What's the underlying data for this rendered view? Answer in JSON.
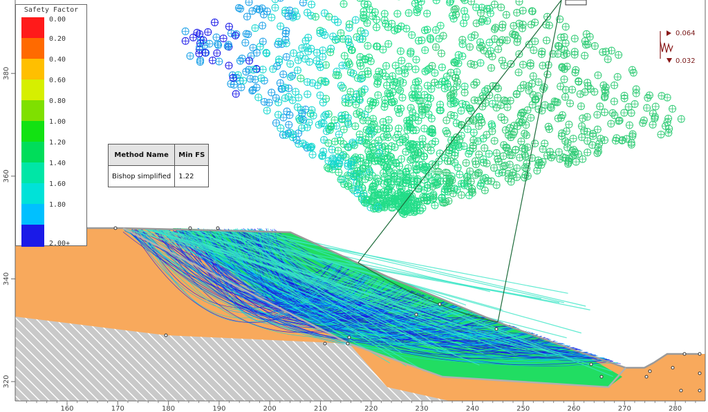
{
  "legend": {
    "title": "Safety Factor",
    "entries": [
      {
        "label": "0.00",
        "color": "#ff1a1a"
      },
      {
        "label": "0.20",
        "color": "#ff6a00"
      },
      {
        "label": "0.40",
        "color": "#ffbf00"
      },
      {
        "label": "0.60",
        "color": "#d6ef00"
      },
      {
        "label": "0.80",
        "color": "#7fe000"
      },
      {
        "label": "1.00",
        "color": "#12e212"
      },
      {
        "label": "1.20",
        "color": "#00dd5a"
      },
      {
        "label": "1.40",
        "color": "#00e6a6"
      },
      {
        "label": "1.60",
        "color": "#00e2d8"
      },
      {
        "label": "1.80",
        "color": "#00c0ff"
      },
      {
        "label": "2.00+",
        "color": "#1a1ae8"
      }
    ]
  },
  "results_table": {
    "headers": [
      "Method Name",
      "Min FS"
    ],
    "rows": [
      [
        "Bishop simplified",
        "1.22"
      ]
    ]
  },
  "axes": {
    "x_ticks": [
      160,
      170,
      180,
      190,
      200,
      210,
      220,
      230,
      240,
      250,
      260,
      270,
      280
    ],
    "y_ticks": [
      320,
      340,
      360,
      380
    ]
  },
  "load": {
    "labels": [
      "0.064",
      "0.032"
    ]
  },
  "colors": {
    "soil_upper": "#f8a95c",
    "soil_lower": "#c9c9c9",
    "critical_zone": "#15df62",
    "slip_surfaces": "#1a1ae8",
    "slip_surfaces_light": "#18d8d0",
    "grid_center_dark": "#1a1aa0",
    "grid_center_light": "#22dd88",
    "boundary": "#a7a7a7"
  }
}
